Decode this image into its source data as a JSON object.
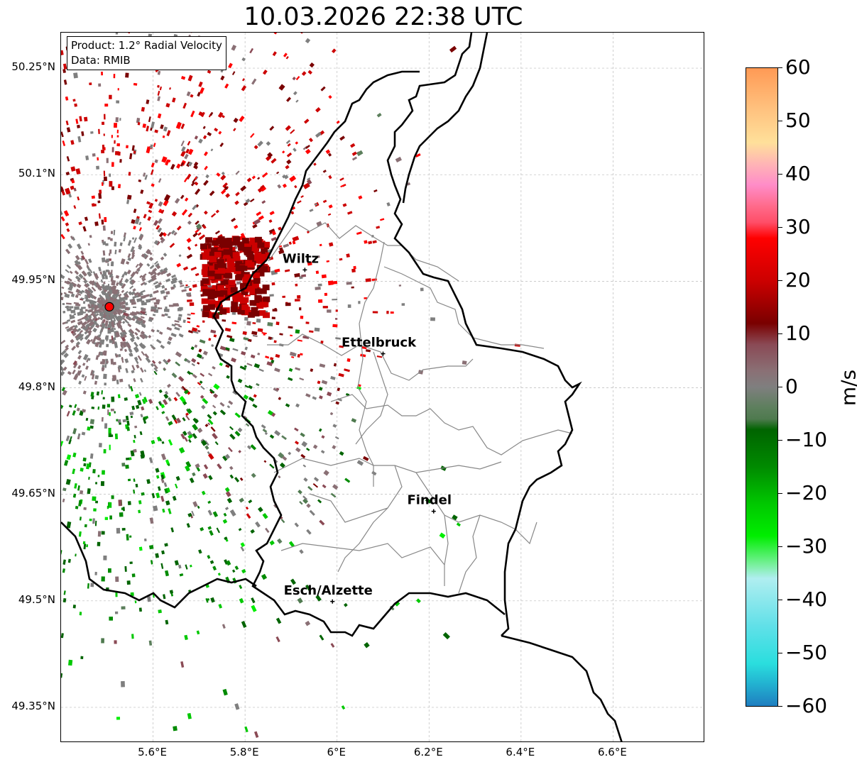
{
  "title": "10.03.2026 22:38 UTC",
  "info": {
    "product": "Product: 1.2° Radial Velocity",
    "data": "Data: RMIB"
  },
  "lat_labels": [
    "50.25°N",
    "50.1°N",
    "49.95°N",
    "49.8°N",
    "49.65°N",
    "49.5°N",
    "49.35°N"
  ],
  "lon_labels": [
    "5.6°E",
    "5.8°E",
    "6°E",
    "6.2°E",
    "6.4°E",
    "6.6°E"
  ],
  "cities": [
    {
      "name": "Wiltz",
      "lon": 5.93,
      "lat": 49.966
    },
    {
      "name": "Ettelbruck",
      "lon": 6.1,
      "lat": 49.848
    },
    {
      "name": "Findel",
      "lon": 6.21,
      "lat": 49.626
    },
    {
      "name": "Esch/Alzette",
      "lon": 5.99,
      "lat": 49.499
    }
  ],
  "radar_site": {
    "lon": 5.505,
    "lat": 49.914
  },
  "colorbar": {
    "ticks": [
      "60",
      "50",
      "40",
      "30",
      "20",
      "10",
      "0",
      "−10",
      "−20",
      "−30",
      "−40",
      "−50",
      "−60"
    ],
    "unit": "m/s",
    "min": -60,
    "max": 60,
    "stops": [
      {
        "v": 60,
        "c": "#ff9a55"
      },
      {
        "v": 52,
        "c": "#ffc380"
      },
      {
        "v": 46,
        "c": "#ffe09a"
      },
      {
        "v": 42,
        "c": "#ffb5b5"
      },
      {
        "v": 38,
        "c": "#ff8cc8"
      },
      {
        "v": 34,
        "c": "#ff6a8a"
      },
      {
        "v": 31,
        "c": "#ff4e68"
      },
      {
        "v": 28,
        "c": "#ff0000"
      },
      {
        "v": 20,
        "c": "#cc0000"
      },
      {
        "v": 12,
        "c": "#7a0000"
      },
      {
        "v": 8,
        "c": "#8a4a55"
      },
      {
        "v": 3,
        "c": "#8a7075"
      },
      {
        "v": 0,
        "c": "#7f7f7f"
      },
      {
        "v": -4,
        "c": "#5c7f5c"
      },
      {
        "v": -6,
        "c": "#4f7a4f"
      },
      {
        "v": -8,
        "c": "#006400"
      },
      {
        "v": -15,
        "c": "#008a00"
      },
      {
        "v": -22,
        "c": "#00c800"
      },
      {
        "v": -28,
        "c": "#00ee00"
      },
      {
        "v": -33,
        "c": "#70f090"
      },
      {
        "v": -36,
        "c": "#b0eef0"
      },
      {
        "v": -45,
        "c": "#60e0e8"
      },
      {
        "v": -52,
        "c": "#2adede"
      },
      {
        "v": -56,
        "c": "#22b0d0"
      },
      {
        "v": -60,
        "c": "#1f7ec0"
      }
    ]
  },
  "map": {
    "lon_range": [
      5.4,
      6.8
    ],
    "lat_range": [
      49.3,
      50.3
    ]
  }
}
